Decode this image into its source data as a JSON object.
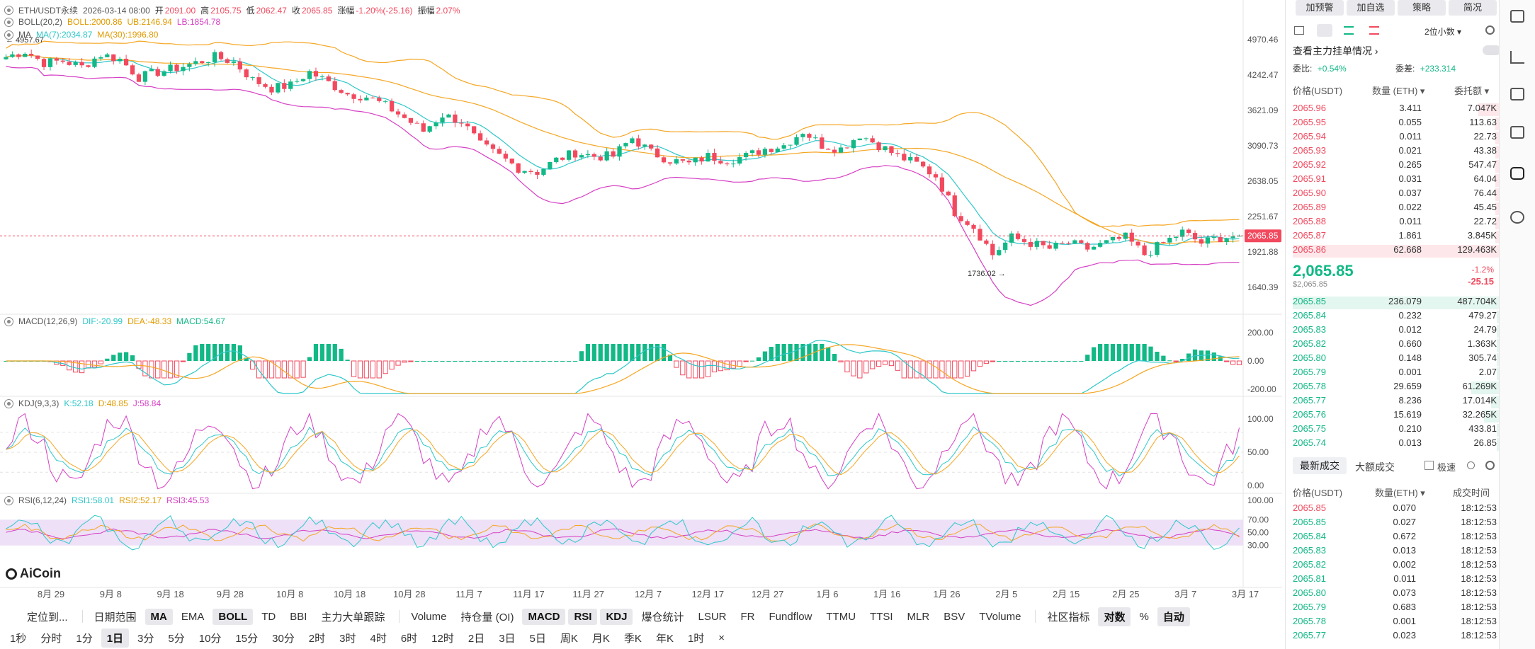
{
  "main_legend": {
    "symbol": "ETH/USDT永续",
    "date": "2026-03-14 08:00",
    "open_label": "开",
    "open": "2091.00",
    "high_label": "高",
    "high": "2105.75",
    "low_label": "低",
    "low": "2062.47",
    "close_label": "收",
    "close": "2065.85",
    "change_label": "涨幅",
    "change": "-1.20%(-25.16)",
    "amplitude_label": "振幅",
    "amplitude": "2.07%"
  },
  "boll_legend": {
    "name": "BOLL(20,2)",
    "boll": "BOLL:2000.86",
    "ub": "UB:2146.94",
    "lb": "LB:1854.78"
  },
  "ma_legend": {
    "name": "MA",
    "ma7": "MA(7):2034.87",
    "ma30": "MA(30):1996.80"
  },
  "macd_legend": {
    "name": "MACD(12,26,9)",
    "dif": "DIF:-20.99",
    "dea": "DEA:-48.33",
    "macd": "MACD:54.67"
  },
  "kdj_legend": {
    "name": "KDJ(9,3,3)",
    "k": "K:52.18",
    "d": "D:48.85",
    "j": "J:58.84"
  },
  "rsi_legend": {
    "name": "RSI(6,12,24)",
    "rsi1": "RSI1:58.01",
    "rsi2": "RSI2:52.17",
    "rsi3": "RSI3:45.53"
  },
  "colors": {
    "up": "#12b886",
    "down": "#f2495e",
    "boll_mid": "#f5a623",
    "boll_band": "#d63fc4",
    "ma7": "#2ec7c9",
    "ma30": "#f5a623",
    "rsi_band": "#e8d8f5"
  },
  "price_axis": [
    "4970.46",
    "4242.47",
    "3621.09",
    "3090.73",
    "2638.05",
    "2251.67",
    "1921.88",
    "1640.39"
  ],
  "current_price_tag": "2065.85",
  "high_marker": "4957.67",
  "low_marker": "1736.02",
  "macd_axis": [
    "200.00",
    "0.00",
    "-200.00"
  ],
  "kdj_axis": [
    "100.00",
    "50.00",
    "0.00"
  ],
  "rsi_axis": [
    "100.00",
    "70.00",
    "50.00",
    "30.00"
  ],
  "date_axis": [
    "8月 29",
    "9月 8",
    "9月 18",
    "9月 28",
    "10月 8",
    "10月 18",
    "10月 28",
    "11月 7",
    "11月 17",
    "11月 27",
    "12月 7",
    "12月 17",
    "12月 27",
    "1月 6",
    "1月 16",
    "1月 26",
    "2月 5",
    "2月 15",
    "2月 25",
    "3月 7",
    "3月 17"
  ],
  "brand": "AiCoin",
  "chart_data": {
    "type": "candlestick",
    "title": "ETH/USDT永续",
    "x_start": "8月 29",
    "x_end": "3月 14",
    "ylim": [
      1640.39,
      4970.46
    ],
    "y_scale": "log",
    "close_path": [
      4600,
      4720,
      4480,
      4520,
      4400,
      4650,
      4550,
      4200,
      4300,
      4380,
      4480,
      4600,
      4500,
      4150,
      4000,
      4050,
      4300,
      4100,
      3900,
      3850,
      3700,
      3500,
      3300,
      3550,
      3450,
      3100,
      2950,
      2800,
      2750,
      2900,
      3000,
      2950,
      2950,
      3200,
      3000,
      2900,
      2850,
      2950,
      2900,
      2950,
      3050,
      3100,
      3300,
      3100,
      3050,
      3250,
      3100,
      2950,
      2850,
      2700,
      2300,
      2150,
      1900,
      2050,
      2000,
      1950,
      2000,
      1950,
      2000,
      2050,
      1900,
      2000,
      2100,
      2000,
      2050,
      2070
    ],
    "ma_series": [
      {
        "name": "MA(7)"
      },
      {
        "name": "MA(30)"
      }
    ],
    "boll_series": [
      {
        "name": "BOLL"
      },
      {
        "name": "UB"
      },
      {
        "name": "LB"
      }
    ]
  },
  "toolbar": {
    "row1": [
      "定位到...",
      "日期范围",
      "MA",
      "EMA",
      "BOLL",
      "TD",
      "BBI",
      "主力大单跟踪",
      "Volume",
      "持仓量 (OI)",
      "MACD",
      "RSI",
      "KDJ",
      "爆仓统计",
      "LSUR",
      "FR",
      "Fundflow",
      "TTMU",
      "TTSI",
      "MLR",
      "BSV",
      "TVolume",
      "社区指标",
      "对数",
      "%",
      "自动"
    ],
    "row1_selected": [
      "MA",
      "BOLL",
      "MACD",
      "RSI",
      "KDJ",
      "对数",
      "自动"
    ],
    "row2": [
      "1秒",
      "分时",
      "1分",
      "1日",
      "3分",
      "5分",
      "10分",
      "15分",
      "30分",
      "2时",
      "3时",
      "4时",
      "6时",
      "12时",
      "2日",
      "3日",
      "5日",
      "周K",
      "月K",
      "季K",
      "年K",
      "1时",
      "×"
    ],
    "row2_selected": "1日"
  },
  "right_panel": {
    "buttons": [
      "加预警",
      "加自选",
      "策略",
      "简况"
    ],
    "precision": "2位小数",
    "main_orders_label": "查看主力挂单情况",
    "ratio_label": "委比:",
    "ratio_value": "+0.54%",
    "diff_label": "委差:",
    "diff_value": "+233.314",
    "headers": [
      "价格(USDT)",
      "数量 (ETH)",
      "委托额"
    ],
    "asks": [
      {
        "p": "2065.96",
        "q": "3.411",
        "t": "7.047K"
      },
      {
        "p": "2065.95",
        "q": "0.055",
        "t": "113.63"
      },
      {
        "p": "2065.94",
        "q": "0.011",
        "t": "22.73"
      },
      {
        "p": "2065.93",
        "q": "0.021",
        "t": "43.38"
      },
      {
        "p": "2065.92",
        "q": "0.265",
        "t": "547.47"
      },
      {
        "p": "2065.91",
        "q": "0.031",
        "t": "64.04"
      },
      {
        "p": "2065.90",
        "q": "0.037",
        "t": "76.44"
      },
      {
        "p": "2065.89",
        "q": "0.022",
        "t": "45.45"
      },
      {
        "p": "2065.88",
        "q": "0.011",
        "t": "22.72"
      },
      {
        "p": "2065.87",
        "q": "1.861",
        "t": "3.845K"
      },
      {
        "p": "2065.86",
        "q": "62.668",
        "t": "129.463K"
      }
    ],
    "last_price": "2,065.85",
    "last_price_usd": "$2,065.85",
    "last_change_pct": "-1.2%",
    "last_change": "-25.15",
    "bids": [
      {
        "p": "2065.85",
        "q": "236.079",
        "t": "487.704K"
      },
      {
        "p": "2065.84",
        "q": "0.232",
        "t": "479.27"
      },
      {
        "p": "2065.83",
        "q": "0.012",
        "t": "24.79"
      },
      {
        "p": "2065.82",
        "q": "0.660",
        "t": "1.363K"
      },
      {
        "p": "2065.80",
        "q": "0.148",
        "t": "305.74"
      },
      {
        "p": "2065.79",
        "q": "0.001",
        "t": "2.07"
      },
      {
        "p": "2065.78",
        "q": "29.659",
        "t": "61.269K"
      },
      {
        "p": "2065.77",
        "q": "8.236",
        "t": "17.014K"
      },
      {
        "p": "2065.76",
        "q": "15.619",
        "t": "32.265K"
      },
      {
        "p": "2065.75",
        "q": "0.210",
        "t": "433.81"
      },
      {
        "p": "2065.74",
        "q": "0.013",
        "t": "26.85"
      }
    ],
    "trades_tab_latest": "最新成交",
    "trades_tab_large": "大额成交",
    "fast_label": "极速",
    "trade_headers": [
      "价格(USDT)",
      "数量(ETH)",
      "成交时间"
    ],
    "trades": [
      {
        "p": "2065.85",
        "q": "0.070",
        "t": "18:12:53",
        "side": "down"
      },
      {
        "p": "2065.85",
        "q": "0.027",
        "t": "18:12:53",
        "side": "up"
      },
      {
        "p": "2065.84",
        "q": "0.672",
        "t": "18:12:53",
        "side": "up"
      },
      {
        "p": "2065.83",
        "q": "0.013",
        "t": "18:12:53",
        "side": "up"
      },
      {
        "p": "2065.82",
        "q": "0.002",
        "t": "18:12:53",
        "side": "up"
      },
      {
        "p": "2065.81",
        "q": "0.011",
        "t": "18:12:53",
        "side": "up"
      },
      {
        "p": "2065.80",
        "q": "0.073",
        "t": "18:12:53",
        "side": "up"
      },
      {
        "p": "2065.79",
        "q": "0.683",
        "t": "18:12:53",
        "side": "up"
      },
      {
        "p": "2065.78",
        "q": "0.001",
        "t": "18:12:53",
        "side": "up"
      },
      {
        "p": "2065.77",
        "q": "0.023",
        "t": "18:12:53",
        "side": "up"
      }
    ]
  }
}
